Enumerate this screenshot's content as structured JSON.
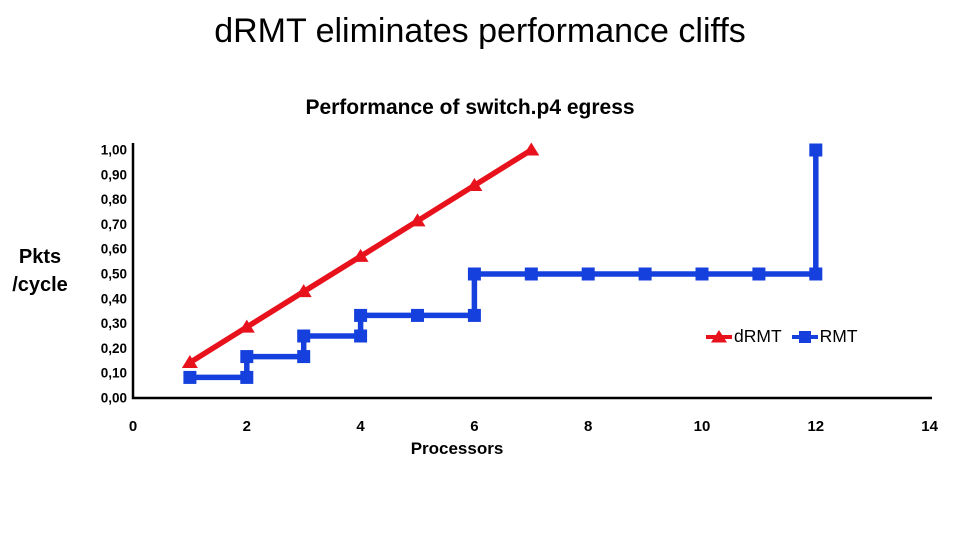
{
  "slide": {
    "title": "dRMT eliminates performance cliffs"
  },
  "chart_data": {
    "type": "line",
    "title": "Performance of switch.p4 egress",
    "xlabel": "Processors",
    "ylabel_line1": "Pkts",
    "ylabel_line2": "/cycle",
    "xlim": [
      0,
      14
    ],
    "ylim": [
      0,
      1
    ],
    "grid": false,
    "legend_position": "right-middle-inside",
    "x_ticks": [
      0,
      2,
      4,
      6,
      8,
      10,
      12,
      14
    ],
    "y_ticks": {
      "values": [
        1.0,
        0.9,
        0.8,
        0.7,
        0.6,
        0.5,
        0.4,
        0.3,
        0.2,
        0.1,
        0.0
      ],
      "labels": [
        "1,00",
        "0,90",
        "0,80",
        "0,70",
        "0,60",
        "0,50",
        "0,40",
        "0,30",
        "0,20",
        "0,10",
        "0,00"
      ]
    },
    "axis_color": "#000000",
    "series": [
      {
        "name": "dRMT",
        "color": "#e8121d",
        "marker": "triangle",
        "points": [
          [
            1,
            0.143
          ],
          [
            2,
            0.286
          ],
          [
            3,
            0.429
          ],
          [
            4,
            0.571
          ],
          [
            5,
            0.714
          ],
          [
            6,
            0.857
          ],
          [
            7,
            1.0
          ]
        ]
      },
      {
        "name": "RMT",
        "color": "#1540dd",
        "marker": "square",
        "points": [
          [
            1,
            0.083
          ],
          [
            2,
            0.083
          ],
          [
            2,
            0.167
          ],
          [
            3,
            0.167
          ],
          [
            3,
            0.25
          ],
          [
            4,
            0.25
          ],
          [
            4,
            0.333
          ],
          [
            5,
            0.333
          ],
          [
            6,
            0.333
          ],
          [
            6,
            0.5
          ],
          [
            7,
            0.5
          ],
          [
            8,
            0.5
          ],
          [
            9,
            0.5
          ],
          [
            10,
            0.5
          ],
          [
            11,
            0.5
          ],
          [
            12,
            0.5
          ],
          [
            12,
            1.0
          ]
        ]
      }
    ]
  }
}
